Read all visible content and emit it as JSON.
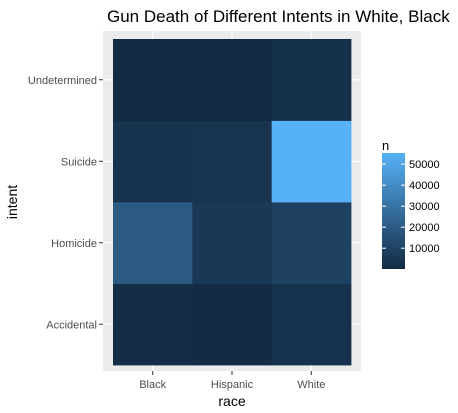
{
  "chart_data": {
    "type": "heatmap",
    "title": "Gun Death of Different Intents in White, Black",
    "xlabel": "race",
    "ylabel": "intent",
    "x_categories": [
      "Black",
      "Hispanic",
      "White"
    ],
    "y_categories": [
      "Accidental",
      "Homicide",
      "Suicide",
      "Undetermined"
    ],
    "cells": [
      {
        "x": "Black",
        "y": "Accidental",
        "n": 1200
      },
      {
        "x": "Hispanic",
        "y": "Accidental",
        "n": 400
      },
      {
        "x": "White",
        "y": "Accidental",
        "n": 2500
      },
      {
        "x": "Black",
        "y": "Homicide",
        "n": 19500
      },
      {
        "x": "Hispanic",
        "y": "Homicide",
        "n": 5600
      },
      {
        "x": "White",
        "y": "Homicide",
        "n": 9100
      },
      {
        "x": "Black",
        "y": "Suicide",
        "n": 3300
      },
      {
        "x": "Hispanic",
        "y": "Suicide",
        "n": 3900
      },
      {
        "x": "White",
        "y": "Suicide",
        "n": 55300
      },
      {
        "x": "Black",
        "y": "Undetermined",
        "n": 300
      },
      {
        "x": "Hispanic",
        "y": "Undetermined",
        "n": 100
      },
      {
        "x": "White",
        "y": "Undetermined",
        "n": 2000
      }
    ],
    "legend": {
      "title": "n",
      "ticks": [
        10000,
        20000,
        30000,
        40000,
        50000
      ],
      "tick_labels": [
        "10000",
        "20000",
        "30000",
        "40000",
        "50000"
      ],
      "range": [
        100,
        55300
      ],
      "low_color": "#132b43",
      "high_color": "#56b1f7",
      "position": "right"
    },
    "panel_background": "#ebebeb",
    "grid": true
  }
}
